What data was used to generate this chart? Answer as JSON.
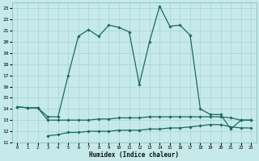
{
  "xlabel": "Humidex (Indice chaleur)",
  "xlim": [
    -0.5,
    23.5
  ],
  "ylim": [
    11,
    23.5
  ],
  "yticks": [
    11,
    12,
    13,
    14,
    15,
    16,
    17,
    18,
    19,
    20,
    21,
    22,
    23
  ],
  "xticks": [
    0,
    1,
    2,
    3,
    4,
    5,
    6,
    7,
    8,
    9,
    10,
    11,
    12,
    13,
    14,
    15,
    16,
    17,
    18,
    19,
    20,
    21,
    22,
    23
  ],
  "bg_color": "#c6e9e9",
  "grid_color": "#a8d4d4",
  "line_color": "#1a6b5a",
  "line_main_x": [
    0,
    1,
    2,
    3,
    4,
    5,
    6,
    7,
    8,
    9,
    10,
    11,
    12,
    13,
    14,
    15,
    16,
    17,
    18,
    19,
    20,
    21,
    22,
    23
  ],
  "line_main_y": [
    14.2,
    14.1,
    14.1,
    13.3,
    13.3,
    17.0,
    20.5,
    21.1,
    20.5,
    21.5,
    21.3,
    20.9,
    16.2,
    20.0,
    23.2,
    21.4,
    21.5,
    20.6,
    14.0,
    13.5,
    13.5,
    12.2,
    13.0,
    13.0
  ],
  "line_mid_x": [
    0,
    1,
    2,
    3,
    4,
    5,
    6,
    7,
    8,
    9,
    10,
    11,
    12,
    13,
    14,
    15,
    16,
    17,
    18,
    19,
    20,
    21,
    22,
    23
  ],
  "line_mid_y": [
    14.2,
    14.1,
    14.1,
    13.0,
    13.0,
    13.0,
    13.0,
    13.0,
    13.1,
    13.1,
    13.2,
    13.2,
    13.2,
    13.3,
    13.3,
    13.3,
    13.3,
    13.3,
    13.3,
    13.3,
    13.3,
    13.2,
    13.0,
    13.0
  ],
  "line_bot_x": [
    3,
    4,
    5,
    6,
    7,
    8,
    9,
    10,
    11,
    12,
    13,
    14,
    15,
    16,
    17,
    18,
    19,
    20,
    21,
    22,
    23
  ],
  "line_bot_y": [
    11.6,
    11.7,
    11.9,
    11.9,
    12.0,
    12.0,
    12.0,
    12.1,
    12.1,
    12.1,
    12.2,
    12.2,
    12.3,
    12.3,
    12.4,
    12.5,
    12.6,
    12.6,
    12.4,
    12.3,
    12.3
  ]
}
